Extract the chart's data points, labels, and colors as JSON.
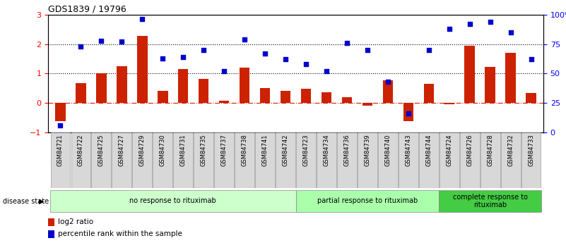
{
  "title": "GDS1839 / 19796",
  "samples": [
    "GSM84721",
    "GSM84722",
    "GSM84725",
    "GSM84727",
    "GSM84729",
    "GSM84730",
    "GSM84731",
    "GSM84735",
    "GSM84737",
    "GSM84738",
    "GSM84741",
    "GSM84742",
    "GSM84723",
    "GSM84734",
    "GSM84736",
    "GSM84739",
    "GSM84740",
    "GSM84743",
    "GSM84744",
    "GSM84724",
    "GSM84726",
    "GSM84728",
    "GSM84732",
    "GSM84733"
  ],
  "log2_ratio": [
    -0.62,
    0.68,
    1.02,
    1.25,
    2.27,
    0.4,
    1.15,
    0.82,
    0.08,
    1.2,
    0.5,
    0.42,
    0.48,
    0.37,
    0.2,
    -0.08,
    0.78,
    -0.62,
    0.65,
    -0.05,
    1.93,
    1.22,
    1.7,
    0.35
  ],
  "percentile": [
    6,
    73,
    78,
    77,
    96,
    63,
    64,
    70,
    52,
    79,
    67,
    62,
    58,
    52,
    76,
    70,
    43,
    16,
    70,
    88,
    92,
    94,
    85,
    62
  ],
  "groups": [
    {
      "label": "no response to rituximab",
      "start": 0,
      "end": 12,
      "color": "#ccffcc"
    },
    {
      "label": "partial response to rituximab",
      "start": 12,
      "end": 19,
      "color": "#aaffaa"
    },
    {
      "label": "complete response to\nrituximab",
      "start": 19,
      "end": 24,
      "color": "#44cc44"
    }
  ],
  "bar_color": "#cc2200",
  "dot_color": "#0000cc",
  "ylim_left": [
    -1,
    3
  ],
  "ylim_right": [
    0,
    100
  ],
  "yticks_left": [
    -1,
    0,
    1,
    2,
    3
  ],
  "yticks_right": [
    0,
    25,
    50,
    75,
    100
  ],
  "yticklabels_right": [
    "0",
    "25",
    "50",
    "75",
    "100%"
  ],
  "legend_items": [
    {
      "label": "log2 ratio",
      "color": "#cc2200"
    },
    {
      "label": "percentile rank within the sample",
      "color": "#0000cc"
    }
  ]
}
